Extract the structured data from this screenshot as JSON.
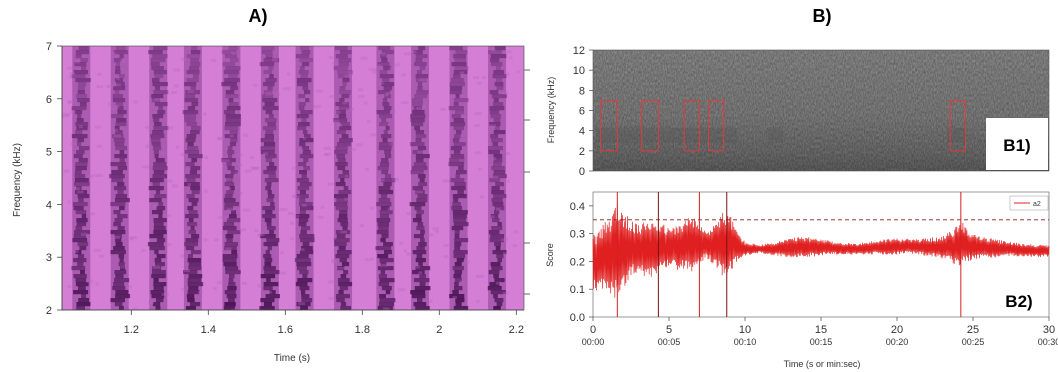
{
  "panels": {
    "a": {
      "title": "A)"
    },
    "b": {
      "title": "B)"
    },
    "b1": {
      "label": "B1)"
    },
    "b2": {
      "label": "B2)"
    }
  },
  "chart_data": [
    {
      "id": "A",
      "type": "heatmap",
      "xlabel": "Time (s)",
      "ylabel": "Frequency (kHz)",
      "xlim": [
        1.02,
        2.22
      ],
      "ylim": [
        2,
        7
      ],
      "x_ticks": [
        "1.2",
        "1.4",
        "1.6",
        "1.8",
        "2",
        "2.2"
      ],
      "y_ticks": [
        "2",
        "3",
        "4",
        "5",
        "6",
        "7"
      ],
      "colors": {
        "light": "#d47ed6",
        "dark": "#3d0b47"
      },
      "dark_band_centers_s": [
        1.07,
        1.17,
        1.27,
        1.36,
        1.46,
        1.56,
        1.65,
        1.75,
        1.86,
        1.95,
        2.05,
        2.15
      ],
      "grid": false
    },
    {
      "id": "B1",
      "type": "heatmap",
      "ylabel": "Frequency (kHz)",
      "xlim": [
        0,
        30
      ],
      "ylim": [
        0,
        12
      ],
      "y_ticks": [
        "0",
        "2",
        "4",
        "6",
        "8",
        "10",
        "12"
      ],
      "detection_boxes": [
        {
          "t0": 0.5,
          "t1": 1.6,
          "f0": 2,
          "f1": 7
        },
        {
          "t0": 3.2,
          "t1": 4.3,
          "f0": 2,
          "f1": 7
        },
        {
          "t0": 6.0,
          "t1": 7.0,
          "f0": 2,
          "f1": 7
        },
        {
          "t0": 7.6,
          "t1": 8.6,
          "f0": 2,
          "f1": 7
        },
        {
          "t0": 23.5,
          "t1": 24.5,
          "f0": 2,
          "f1": 7
        }
      ],
      "box_color": "#e23b3b"
    },
    {
      "id": "B2",
      "type": "line",
      "xlabel": "Time (s or min:sec)",
      "ylabel": "Score",
      "xlim": [
        0,
        30
      ],
      "ylim": [
        0,
        0.45
      ],
      "x_ticks": [
        {
          "value": 0,
          "top": "0",
          "bottom": "00:00"
        },
        {
          "value": 5,
          "top": "5",
          "bottom": "00:05"
        },
        {
          "value": 10,
          "top": "10",
          "bottom": "00:10"
        },
        {
          "value": 15,
          "top": "15",
          "bottom": "00:15"
        },
        {
          "value": 20,
          "top": "20",
          "bottom": "00:20"
        },
        {
          "value": 25,
          "top": "25",
          "bottom": "00:25"
        },
        {
          "value": 30,
          "top": "30",
          "bottom": "00:30"
        }
      ],
      "y_ticks": [
        "0.0",
        "0.1",
        "0.2",
        "0.3",
        "0.4"
      ],
      "threshold": 0.35,
      "detections_s": [
        1.6,
        4.3,
        7.0,
        8.8,
        24.2
      ],
      "series": [
        {
          "name": "a2",
          "color": "#e02020",
          "envelope": [
            [
              0.0,
              0.3,
              0.1
            ],
            [
              0.5,
              0.32,
              0.09
            ],
            [
              1.0,
              0.36,
              0.08
            ],
            [
              1.6,
              0.42,
              0.06
            ],
            [
              2.0,
              0.38,
              0.1
            ],
            [
              2.5,
              0.35,
              0.15
            ],
            [
              3.0,
              0.33,
              0.16
            ],
            [
              3.5,
              0.35,
              0.14
            ],
            [
              4.0,
              0.36,
              0.13
            ],
            [
              4.5,
              0.34,
              0.16
            ],
            [
              5.0,
              0.32,
              0.18
            ],
            [
              5.5,
              0.33,
              0.17
            ],
            [
              6.0,
              0.35,
              0.17
            ],
            [
              6.5,
              0.37,
              0.16
            ],
            [
              7.0,
              0.33,
              0.19
            ],
            [
              7.5,
              0.31,
              0.21
            ],
            [
              8.0,
              0.34,
              0.18
            ],
            [
              8.5,
              0.38,
              0.15
            ],
            [
              9.0,
              0.37,
              0.16
            ],
            [
              9.5,
              0.31,
              0.2
            ],
            [
              10.0,
              0.27,
              0.22
            ],
            [
              11.0,
              0.26,
              0.23
            ],
            [
              12.0,
              0.27,
              0.22
            ],
            [
              13.0,
              0.285,
              0.215
            ],
            [
              14.0,
              0.29,
              0.215
            ],
            [
              15.0,
              0.28,
              0.22
            ],
            [
              16.0,
              0.27,
              0.225
            ],
            [
              17.0,
              0.265,
              0.225
            ],
            [
              18.0,
              0.27,
              0.225
            ],
            [
              19.0,
              0.28,
              0.225
            ],
            [
              20.0,
              0.285,
              0.225
            ],
            [
              21.0,
              0.28,
              0.225
            ],
            [
              22.0,
              0.285,
              0.22
            ],
            [
              23.0,
              0.29,
              0.21
            ],
            [
              23.8,
              0.32,
              0.19
            ],
            [
              24.2,
              0.35,
              0.18
            ],
            [
              24.8,
              0.31,
              0.2
            ],
            [
              25.5,
              0.29,
              0.21
            ],
            [
              26.5,
              0.28,
              0.215
            ],
            [
              27.5,
              0.27,
              0.22
            ],
            [
              28.5,
              0.265,
              0.215
            ],
            [
              29.5,
              0.26,
              0.215
            ],
            [
              30.0,
              0.26,
              0.215
            ]
          ]
        }
      ],
      "legend": "top-right",
      "grid": false
    }
  ]
}
